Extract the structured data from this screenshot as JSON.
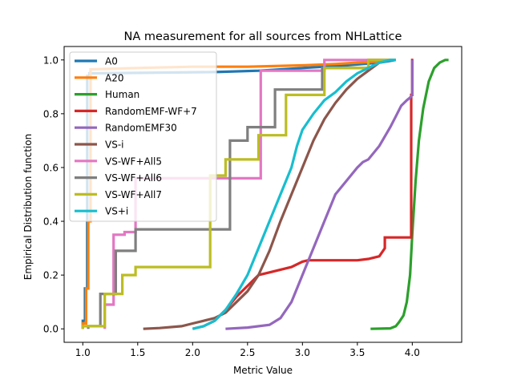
{
  "chart_data": {
    "type": "line",
    "title": "NA measurement for all sources from NHLattice",
    "xlabel": "Metric Value",
    "ylabel": "Empirical Distribution function",
    "xlim": [
      0.83,
      4.45
    ],
    "ylim": [
      -0.05,
      1.05
    ],
    "x_ticks": [
      "1.0",
      "1.5",
      "2.0",
      "2.5",
      "3.0",
      "3.5",
      "4.0"
    ],
    "y_ticks": [
      "0.0",
      "0.2",
      "0.4",
      "0.6",
      "0.8",
      "1.0"
    ],
    "grid": false,
    "legend_position": "top-left",
    "series": [
      {
        "name": "A0",
        "color": "#1f77b4",
        "step": false,
        "x": [
          1.0,
          1.0,
          1.02,
          1.02,
          1.04,
          1.04,
          1.06,
          1.06,
          2.2,
          2.6,
          3.0,
          3.4,
          3.7,
          3.85
        ],
        "y": [
          0.0,
          0.03,
          0.03,
          0.15,
          0.15,
          0.94,
          0.94,
          0.95,
          0.955,
          0.96,
          0.97,
          0.98,
          0.99,
          1.0
        ]
      },
      {
        "name": "A20",
        "color": "#ff7f0e",
        "step": false,
        "x": [
          1.0,
          1.0,
          1.03,
          1.03,
          1.05,
          1.05,
          1.07,
          1.07,
          1.5,
          2.0,
          2.5,
          3.0,
          3.3,
          3.5,
          3.7,
          3.78
        ],
        "y": [
          0.0,
          0.02,
          0.02,
          0.15,
          0.15,
          0.4,
          0.4,
          0.965,
          0.97,
          0.975,
          0.975,
          0.98,
          0.985,
          0.99,
          0.995,
          1.0
        ]
      },
      {
        "name": "Human",
        "color": "#2ca02c",
        "step": false,
        "x": [
          3.62,
          3.8,
          3.85,
          3.88,
          3.92,
          3.95,
          3.98,
          4.0,
          4.03,
          4.06,
          4.1,
          4.15,
          4.2,
          4.25,
          4.3,
          4.33
        ],
        "y": [
          0.0,
          0.002,
          0.01,
          0.025,
          0.05,
          0.1,
          0.2,
          0.35,
          0.55,
          0.7,
          0.82,
          0.92,
          0.97,
          0.99,
          1.0,
          1.0
        ]
      },
      {
        "name": "RandomEMF-WF+7",
        "color": "#d62728",
        "step": false,
        "x": [
          2.0,
          2.1,
          2.2,
          2.3,
          2.4,
          2.5,
          2.6,
          2.7,
          2.8,
          2.9,
          3.0,
          3.05,
          3.1,
          3.2,
          3.3,
          3.5,
          3.6,
          3.7,
          3.75,
          3.75,
          3.99,
          3.99,
          4.0,
          4.0,
          4.01
        ],
        "y": [
          0.0,
          0.01,
          0.03,
          0.07,
          0.12,
          0.16,
          0.2,
          0.21,
          0.22,
          0.23,
          0.25,
          0.255,
          0.255,
          0.255,
          0.255,
          0.255,
          0.26,
          0.27,
          0.3,
          0.34,
          0.34,
          0.87,
          0.87,
          1.0,
          1.0
        ]
      },
      {
        "name": "RandomEMF30",
        "color": "#9467bd",
        "step": false,
        "x": [
          2.3,
          2.5,
          2.7,
          2.8,
          2.9,
          3.0,
          3.1,
          3.2,
          3.3,
          3.4,
          3.5,
          3.55,
          3.6,
          3.7,
          3.8,
          3.85,
          3.9,
          3.95,
          3.98,
          4.0,
          4.0
        ],
        "y": [
          0.0,
          0.005,
          0.015,
          0.04,
          0.1,
          0.2,
          0.3,
          0.4,
          0.5,
          0.55,
          0.6,
          0.62,
          0.63,
          0.68,
          0.75,
          0.79,
          0.83,
          0.85,
          0.86,
          0.87,
          1.0
        ]
      },
      {
        "name": "VS-i",
        "color": "#8c564b",
        "step": false,
        "x": [
          1.55,
          1.7,
          1.9,
          2.0,
          2.1,
          2.2,
          2.3,
          2.4,
          2.5,
          2.6,
          2.7,
          2.8,
          2.9,
          3.0,
          3.1,
          3.2,
          3.3,
          3.4,
          3.5,
          3.6,
          3.7,
          3.8
        ],
        "y": [
          0.0,
          0.003,
          0.01,
          0.02,
          0.03,
          0.04,
          0.06,
          0.1,
          0.14,
          0.2,
          0.29,
          0.4,
          0.5,
          0.6,
          0.7,
          0.78,
          0.84,
          0.89,
          0.93,
          0.96,
          0.99,
          1.0
        ]
      },
      {
        "name": "VS-WF+All5",
        "color": "#e377c2",
        "step": true,
        "x": [
          1.2,
          1.2,
          1.28,
          1.28,
          1.38,
          1.38,
          1.48,
          1.48,
          2.62,
          2.62,
          3.2,
          3.2,
          3.2,
          3.5,
          3.85
        ],
        "y": [
          0.0,
          0.09,
          0.09,
          0.35,
          0.35,
          0.36,
          0.36,
          0.56,
          0.56,
          0.96,
          0.96,
          0.98,
          1.0,
          1.0,
          1.0
        ]
      },
      {
        "name": "VS-WF+All6",
        "color": "#7f7f7f",
        "step": true,
        "x": [
          1.05,
          1.05,
          1.16,
          1.16,
          1.3,
          1.3,
          1.48,
          1.48,
          2.34,
          2.34,
          2.5,
          2.5,
          2.75,
          2.75,
          3.18,
          3.18,
          3.6,
          3.6,
          3.85
        ],
        "y": [
          0.0,
          0.01,
          0.01,
          0.13,
          0.13,
          0.29,
          0.29,
          0.37,
          0.37,
          0.7,
          0.7,
          0.75,
          0.75,
          0.89,
          0.89,
          0.97,
          0.97,
          1.0,
          1.0
        ]
      },
      {
        "name": "VS-WF+All7",
        "color": "#bcbd22",
        "step": true,
        "x": [
          1.0,
          1.0,
          1.14,
          1.14,
          1.2,
          1.2,
          1.36,
          1.36,
          1.48,
          1.48,
          2.16,
          2.16,
          2.3,
          2.3,
          2.6,
          2.6,
          2.85,
          2.85,
          3.2,
          3.2,
          3.6,
          3.6,
          3.85
        ],
        "y": [
          0.0,
          0.01,
          0.01,
          0.01,
          0.01,
          0.13,
          0.13,
          0.2,
          0.2,
          0.23,
          0.23,
          0.57,
          0.57,
          0.63,
          0.63,
          0.72,
          0.72,
          0.87,
          0.87,
          0.97,
          0.97,
          1.0,
          1.0
        ]
      },
      {
        "name": "VS+i",
        "color": "#17becf",
        "step": false,
        "x": [
          2.0,
          2.1,
          2.2,
          2.3,
          2.4,
          2.5,
          2.6,
          2.7,
          2.8,
          2.9,
          2.95,
          3.0,
          3.1,
          3.2,
          3.3,
          3.4,
          3.5,
          3.6,
          3.7,
          3.8,
          3.85
        ],
        "y": [
          0.0,
          0.01,
          0.03,
          0.07,
          0.13,
          0.2,
          0.3,
          0.4,
          0.5,
          0.6,
          0.68,
          0.74,
          0.8,
          0.85,
          0.88,
          0.92,
          0.95,
          0.97,
          0.99,
          1.0,
          1.0
        ]
      }
    ]
  }
}
